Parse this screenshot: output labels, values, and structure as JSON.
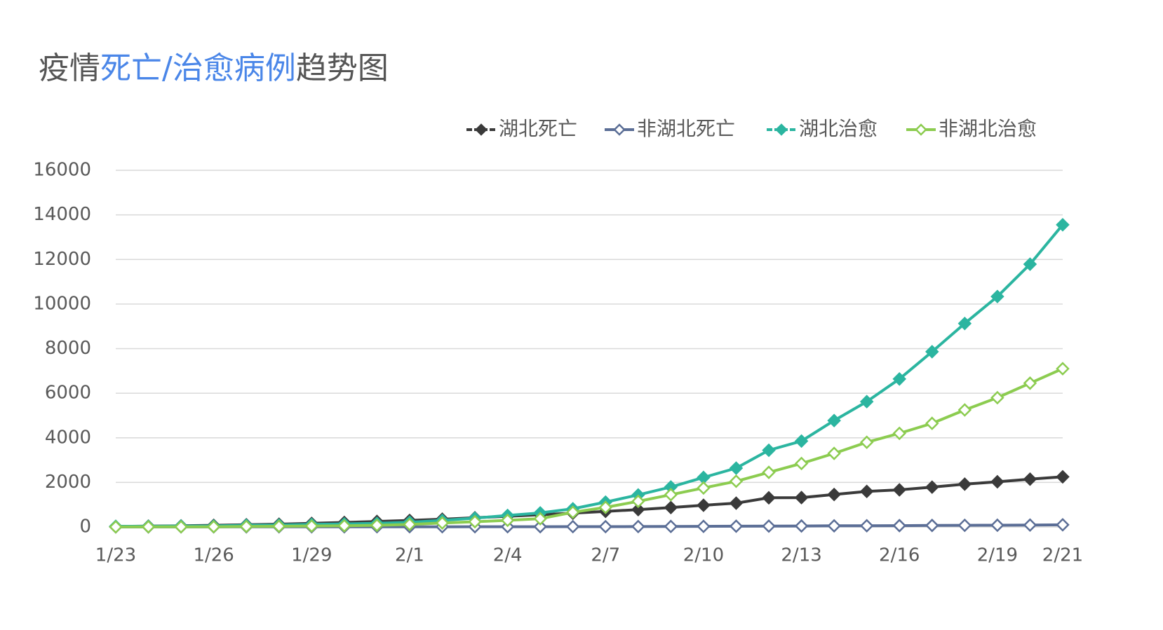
{
  "chart_data": {
    "type": "line",
    "title": [
      {
        "text": "疫情",
        "color": "#555555"
      },
      {
        "text": "死亡/治愈病例",
        "color": "#4a86e8"
      },
      {
        "text": "趋势图",
        "color": "#555555"
      }
    ],
    "categories": [
      "1/23",
      null,
      null,
      "1/26",
      null,
      null,
      "1/29",
      null,
      null,
      "2/1",
      null,
      null,
      "2/4",
      null,
      null,
      "2/7",
      null,
      null,
      "2/10",
      null,
      null,
      "2/13",
      null,
      null,
      "2/16",
      null,
      null,
      "2/19",
      null,
      "2/21"
    ],
    "series": [
      {
        "name": "湖北死亡",
        "color": "#3a3a3a",
        "marker": "filled",
        "values": [
          24,
          39,
          52,
          76,
          100,
          125,
          162,
          204,
          249,
          294,
          350,
          414,
          479,
          549,
          618,
          699,
          780,
          871,
          974,
          1068,
          1310,
          1318,
          1457,
          1596,
          1665,
          1789,
          1921,
          2029,
          2144,
          2250
        ]
      },
      {
        "name": "非湖北死亡",
        "color": "#5b6e96",
        "marker": "open",
        "values": [
          1,
          2,
          4,
          4,
          6,
          7,
          8,
          9,
          11,
          11,
          11,
          13,
          13,
          14,
          16,
          17,
          20,
          25,
          28,
          34,
          39,
          45,
          52,
          56,
          61,
          69,
          76,
          80,
          87,
          97
        ]
      },
      {
        "name": "湖北治愈",
        "color": "#2bb5a0",
        "marker": "filled",
        "values": [
          31,
          32,
          44,
          47,
          80,
          90,
          116,
          137,
          166,
          215,
          295,
          396,
          520,
          633,
          817,
          1115,
          1439,
          1795,
          2222,
          2639,
          3441,
          3854,
          4774,
          5623,
          6639,
          7862,
          9128,
          10337,
          11788,
          13557
        ]
      },
      {
        "name": "非湖北治愈",
        "color": "#8ccc50",
        "marker": "open",
        "values": [
          3,
          7,
          7,
          11,
          23,
          33,
          44,
          54,
          77,
          113,
          180,
          236,
          300,
          371,
          660,
          880,
          1150,
          1450,
          1750,
          2050,
          2450,
          2850,
          3300,
          3800,
          4200,
          4650,
          5250,
          5800,
          6450,
          7100
        ]
      }
    ],
    "ylim": [
      0,
      16000
    ],
    "yticks": [
      0,
      2000,
      4000,
      6000,
      8000,
      10000,
      12000,
      14000,
      16000
    ],
    "grid": true,
    "legend": "top-right"
  }
}
